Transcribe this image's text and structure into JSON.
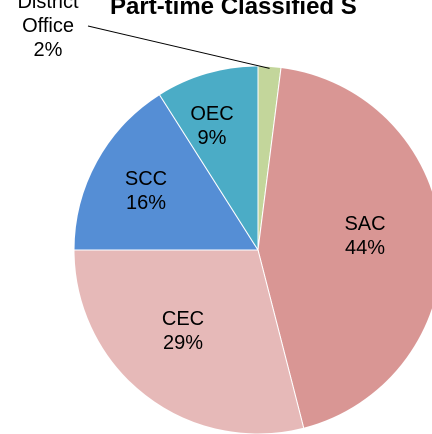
{
  "chart_data": {
    "type": "pie",
    "title": "Part-time Classified S",
    "categories": [
      "District Office",
      "SAC",
      "CEC",
      "SCC",
      "OEC"
    ],
    "values": [
      2,
      44,
      29,
      16,
      9
    ],
    "value_labels": [
      "2%",
      "44%",
      "29%",
      "16%",
      "9%"
    ],
    "colors": [
      "#c3d69b",
      "#d99694",
      "#e6b9b8",
      "#558ed5",
      "#4bacc6"
    ]
  }
}
